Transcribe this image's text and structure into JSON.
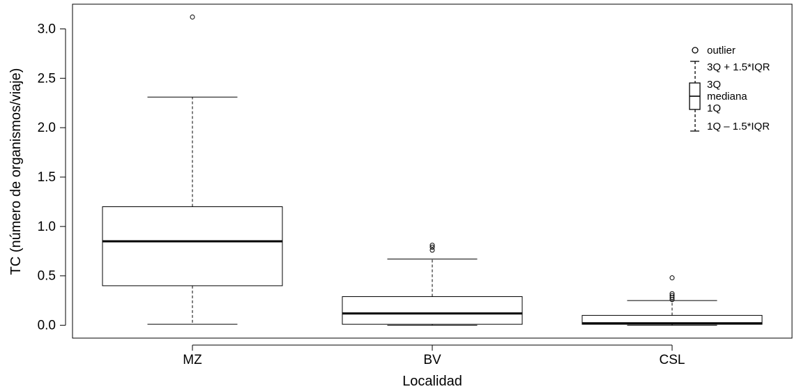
{
  "chart_data": {
    "type": "box",
    "xlabel": "Localidad",
    "ylabel": "TC (número de organismos/viaje)",
    "ylim": [
      -0.13,
      3.25
    ],
    "yticks": [
      0.0,
      0.5,
      1.0,
      1.5,
      2.0,
      2.5,
      3.0
    ],
    "ytick_labels": [
      "0.0",
      "0.5",
      "1.0",
      "1.5",
      "2.0",
      "2.5",
      "3.0"
    ],
    "grid": false,
    "legend_position": "top-right",
    "categories": [
      "MZ",
      "BV",
      "CSL"
    ],
    "boxes": [
      {
        "category": "MZ",
        "whisker_low": 0.01,
        "q1": 0.4,
        "median": 0.85,
        "q3": 1.2,
        "whisker_high": 2.31,
        "outliers": [
          3.12
        ]
      },
      {
        "category": "BV",
        "whisker_low": 0.0,
        "q1": 0.01,
        "median": 0.12,
        "q3": 0.29,
        "whisker_high": 0.67,
        "outliers": [
          0.76,
          0.79,
          0.81
        ]
      },
      {
        "category": "CSL",
        "whisker_low": 0.0,
        "q1": 0.01,
        "median": 0.02,
        "q3": 0.1,
        "whisker_high": 0.25,
        "outliers": [
          0.26,
          0.28,
          0.3,
          0.32,
          0.48
        ]
      }
    ],
    "legend": {
      "outlier": "outlier",
      "upper_whisker": "3Q + 1.5*IQR",
      "q3": "3Q",
      "median": "mediana",
      "q1": "1Q",
      "lower_whisker": "1Q – 1.5*IQR"
    }
  }
}
